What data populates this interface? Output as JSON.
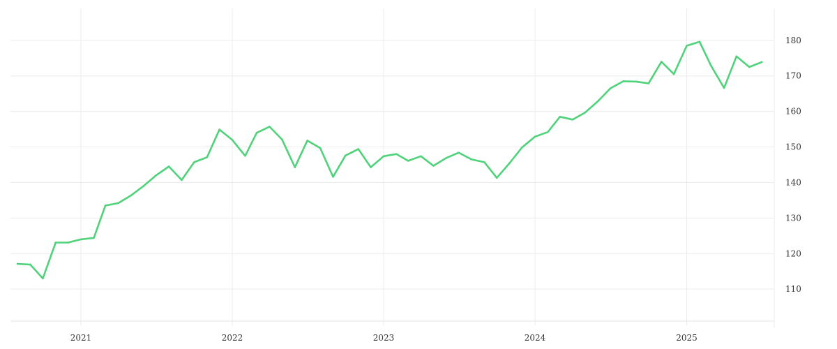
{
  "chart_data": {
    "type": "line",
    "title": "",
    "xlabel": "",
    "ylabel": "",
    "x_ticks": [
      "2021",
      "2022",
      "2023",
      "2024",
      "2025"
    ],
    "y_ticks": [
      110,
      120,
      130,
      140,
      150,
      160,
      170,
      180
    ],
    "xlim": [
      "2020-07-15",
      "2025-07-31"
    ],
    "ylim": [
      101,
      189
    ],
    "grid": true,
    "legend": "none",
    "y_axis_position": "right",
    "color": "#4fd27a",
    "series": [
      {
        "x": [
          "2020-08-01",
          "2020-09-01",
          "2020-10-01",
          "2020-11-01",
          "2020-12-01",
          "2021-01-01",
          "2021-02-01",
          "2021-03-01",
          "2021-04-01",
          "2021-05-01",
          "2021-06-01",
          "2021-07-01",
          "2021-08-01",
          "2021-09-01",
          "2021-10-01",
          "2021-11-01",
          "2021-12-01",
          "2022-01-01",
          "2022-02-01",
          "2022-03-01",
          "2022-04-01",
          "2022-05-01",
          "2022-06-01",
          "2022-07-01",
          "2022-08-01",
          "2022-09-01",
          "2022-10-01",
          "2022-11-01",
          "2022-12-01",
          "2023-01-01",
          "2023-02-01",
          "2023-03-01",
          "2023-04-01",
          "2023-05-01",
          "2023-06-01",
          "2023-07-01",
          "2023-08-01",
          "2023-09-01",
          "2023-10-01",
          "2023-11-01",
          "2023-12-01",
          "2024-01-01",
          "2024-02-01",
          "2024-03-01",
          "2024-04-01",
          "2024-05-01",
          "2024-06-01",
          "2024-07-01",
          "2024-08-01",
          "2024-09-01",
          "2024-10-01",
          "2024-11-01",
          "2024-12-01",
          "2025-01-01",
          "2025-02-01",
          "2025-03-01",
          "2025-04-01",
          "2025-05-01",
          "2025-06-01",
          "2025-07-01"
        ],
        "values": [
          117.1,
          116.9,
          113.0,
          123.1,
          123.1,
          124.0,
          124.4,
          133.5,
          134.2,
          136.3,
          139.0,
          142.0,
          144.5,
          140.7,
          145.7,
          147.1,
          154.9,
          152.0,
          147.5,
          154.0,
          155.7,
          152.1,
          144.3,
          151.8,
          149.7,
          141.6,
          147.6,
          149.4,
          144.3,
          147.4,
          148.0,
          146.1,
          147.4,
          144.7,
          146.9,
          148.4,
          146.5,
          145.7,
          141.3,
          145.5,
          149.9,
          152.9,
          154.2,
          158.5,
          157.7,
          159.7,
          162.9,
          166.5,
          168.5,
          168.4,
          167.9,
          174.0,
          170.5,
          178.5,
          179.6,
          172.8,
          166.6,
          175.5,
          172.5,
          173.9
        ]
      }
    ]
  }
}
